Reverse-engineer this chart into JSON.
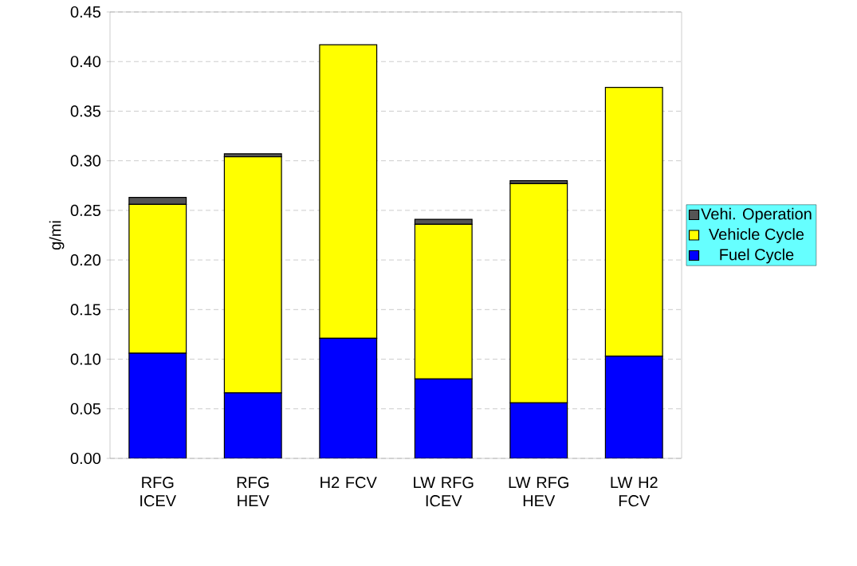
{
  "chart_data": {
    "type": "bar",
    "stacked": true,
    "ylabel": "g/mi",
    "categories": [
      "RFG ICEV",
      "RFG HEV",
      "H2 FCV",
      "LW RFG ICEV",
      "LW RFG HEV",
      "LW H2 FCV"
    ],
    "series": [
      {
        "name": "Fuel Cycle",
        "color": "#0000ff",
        "values": [
          0.106,
          0.066,
          0.121,
          0.08,
          0.056,
          0.103
        ]
      },
      {
        "name": "Vehicle Cycle",
        "color": "#ffff00",
        "values": [
          0.15,
          0.238,
          0.296,
          0.156,
          0.221,
          0.271
        ]
      },
      {
        "name": "Vehi. Operation",
        "color": "#555555",
        "values": [
          0.007,
          0.003,
          0,
          0.005,
          0.003,
          0
        ]
      }
    ],
    "ylim": [
      0,
      0.45
    ],
    "yticks": [
      {
        "value": 0,
        "label": "0.00"
      },
      {
        "value": 0.05,
        "label": "0.05"
      },
      {
        "value": 0.1,
        "label": "0.10"
      },
      {
        "value": 0.15,
        "label": "0.15"
      },
      {
        "value": 0.2,
        "label": "0.20"
      },
      {
        "value": 0.25,
        "label": "0.25"
      },
      {
        "value": 0.3,
        "label": "0.30"
      },
      {
        "value": 0.35,
        "label": "0.35"
      },
      {
        "value": 0.4,
        "label": "0.40"
      },
      {
        "value": 0.45,
        "label": "0.45"
      }
    ],
    "grid": "y",
    "legend": "right"
  }
}
